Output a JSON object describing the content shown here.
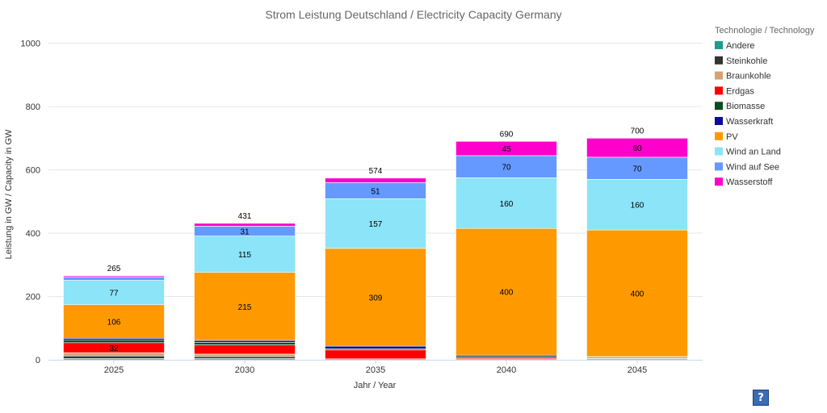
{
  "chart_data": {
    "type": "bar",
    "stacked": true,
    "title": "Strom Leistung Deutschland / Electricity Capacity Germany",
    "xlabel": "Jahr / Year",
    "ylabel": "Leistung in GW / Capacity in GW",
    "ylim": [
      0,
      1050
    ],
    "yticks": [
      0,
      200,
      400,
      600,
      800,
      1000
    ],
    "grid": true,
    "legend_title": "Technologie / Technology",
    "legend_position": "right",
    "categories": [
      "2025",
      "2030",
      "2035",
      "2040",
      "2045"
    ],
    "totals": [
      265,
      431,
      574,
      690,
      700
    ],
    "series": [
      {
        "name": "Andere",
        "color": "#1a9e8a",
        "values": [
          4,
          4,
          3,
          3,
          3
        ]
      },
      {
        "name": "Steinkohle",
        "color": "#333333",
        "values": [
          8,
          6,
          0,
          0,
          0
        ]
      },
      {
        "name": "Braunkohle",
        "color": "#d4a373",
        "values": [
          10,
          8,
          0,
          0,
          0
        ]
      },
      {
        "name": "Erdgas",
        "color": "#ff0000",
        "values": [
          32,
          29,
          28,
          4,
          2
        ]
      },
      {
        "name": "Biomasse",
        "color": "#0b4d1e",
        "values": [
          8,
          8,
          4,
          4,
          3
        ]
      },
      {
        "name": "Wasserkraft",
        "color": "#0b0b9e",
        "values": [
          6,
          6,
          8,
          4,
          2
        ]
      },
      {
        "name": "PV",
        "color": "#ff9900",
        "values": [
          106,
          215,
          309,
          400,
          400
        ]
      },
      {
        "name": "Wind an Land",
        "color": "#8be4f8",
        "values": [
          77,
          115,
          157,
          160,
          160
        ]
      },
      {
        "name": "Wind auf See",
        "color": "#6699ff",
        "values": [
          10,
          31,
          51,
          70,
          70
        ]
      },
      {
        "name": "Wasserstoff",
        "color": "#ff00cc",
        "values": [
          4,
          9,
          14,
          45,
          60
        ]
      }
    ],
    "data_labels": [
      {
        "series": "Erdgas",
        "category": "2025",
        "text": "32"
      },
      {
        "series": "PV",
        "category": "2025",
        "text": "106"
      },
      {
        "series": "PV",
        "category": "2030",
        "text": "215"
      },
      {
        "series": "PV",
        "category": "2035",
        "text": "309"
      },
      {
        "series": "PV",
        "category": "2040",
        "text": "400"
      },
      {
        "series": "PV",
        "category": "2045",
        "text": "400"
      },
      {
        "series": "Wind an Land",
        "category": "2025",
        "text": "77"
      },
      {
        "series": "Wind an Land",
        "category": "2030",
        "text": "115"
      },
      {
        "series": "Wind an Land",
        "category": "2035",
        "text": "157"
      },
      {
        "series": "Wind an Land",
        "category": "2040",
        "text": "160"
      },
      {
        "series": "Wind an Land",
        "category": "2045",
        "text": "160"
      },
      {
        "series": "Wind auf See",
        "category": "2030",
        "text": "31"
      },
      {
        "series": "Wind auf See",
        "category": "2035",
        "text": "51"
      },
      {
        "series": "Wind auf See",
        "category": "2040",
        "text": "70"
      },
      {
        "series": "Wind auf See",
        "category": "2045",
        "text": "70"
      },
      {
        "series": "Wasserstoff",
        "category": "2040",
        "text": "45"
      },
      {
        "series": "Wasserstoff",
        "category": "2045",
        "text": "60"
      }
    ]
  },
  "help": {
    "label": "?"
  }
}
